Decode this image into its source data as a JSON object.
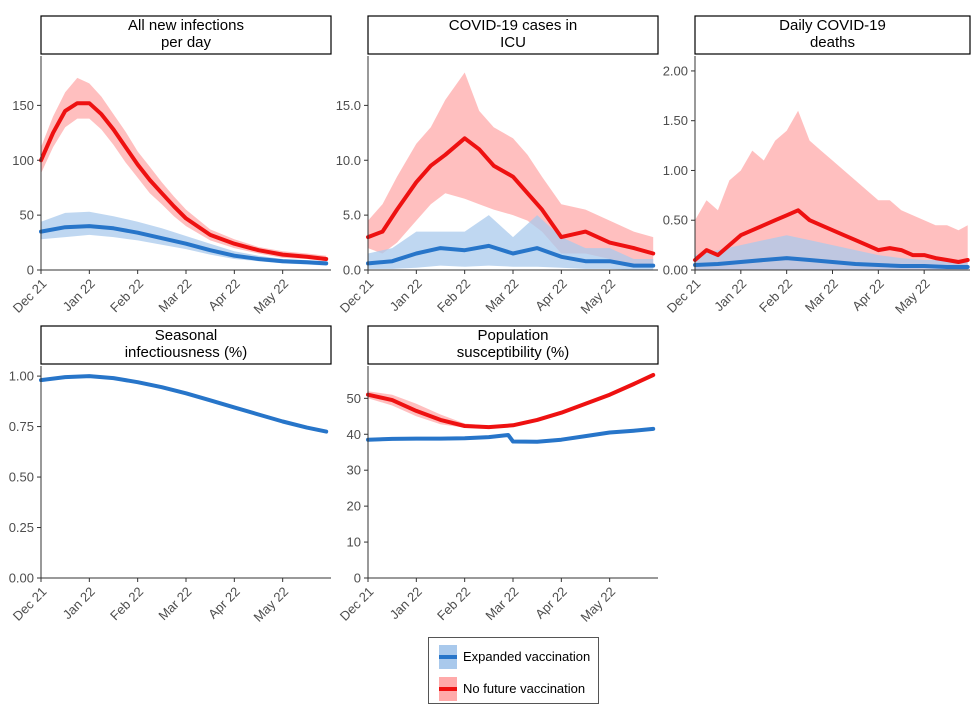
{
  "colors": {
    "expanded": "#2775c9",
    "expanded_band": "#a9c9ec",
    "no_future": "#ee1111",
    "no_future_band": "#ffaaaa",
    "strip_border": "#000000",
    "axis": "#333333"
  },
  "legend": {
    "items": [
      {
        "label": "Expanded vaccination",
        "series": "expanded"
      },
      {
        "label": "No future vaccination",
        "series": "no_future"
      }
    ]
  },
  "x_ticks": [
    "Dec 21",
    "Jan 22",
    "Feb 22",
    "Mar 22",
    "Apr 22",
    "May 22"
  ],
  "chart_data": [
    {
      "type": "area",
      "title_lines": [
        "All new infections",
        "per day"
      ],
      "x_ticks": [
        "Dec 21",
        "Jan 22",
        "Feb 22",
        "Mar 22",
        "Apr 22",
        "May 22"
      ],
      "x_range_months": [
        0,
        6
      ],
      "ylim": [
        0,
        195
      ],
      "y_ticks": [
        0,
        50,
        100,
        150
      ],
      "y_tick_labels": [
        "0",
        "50",
        "100",
        "150"
      ],
      "series": [
        {
          "name": "No future vaccination",
          "key": "no_future",
          "x_months": [
            0,
            0.25,
            0.5,
            0.75,
            1.0,
            1.25,
            1.5,
            1.75,
            2.0,
            2.25,
            2.5,
            2.75,
            3.0,
            3.5,
            4.0,
            4.5,
            5.0,
            5.5,
            5.9
          ],
          "values": [
            100,
            125,
            145,
            152,
            152,
            142,
            128,
            112,
            96,
            82,
            70,
            58,
            47,
            32,
            24,
            18,
            14,
            12,
            10
          ],
          "lower": [
            88,
            112,
            130,
            138,
            138,
            128,
            114,
            98,
            84,
            70,
            60,
            49,
            40,
            27,
            20,
            15,
            11,
            10,
            8
          ],
          "upper": [
            112,
            140,
            162,
            175,
            170,
            158,
            142,
            126,
            108,
            94,
            80,
            67,
            55,
            37,
            28,
            21,
            17,
            15,
            13
          ]
        },
        {
          "name": "Expanded vaccination",
          "key": "expanded",
          "x_months": [
            0,
            0.5,
            1.0,
            1.5,
            2.0,
            2.5,
            3.0,
            3.5,
            4.0,
            4.5,
            5.0,
            5.5,
            5.9
          ],
          "values": [
            35,
            39,
            40,
            38,
            34,
            29,
            24,
            18,
            13,
            10,
            8,
            7,
            6
          ],
          "lower": [
            28,
            30,
            32,
            30,
            27,
            23,
            19,
            14,
            10,
            8,
            6,
            5,
            4
          ],
          "upper": [
            44,
            52,
            53,
            49,
            44,
            38,
            31,
            24,
            17,
            13,
            10,
            9,
            8
          ]
        }
      ]
    },
    {
      "type": "area",
      "title_lines": [
        "COVID-19 cases in",
        "ICU"
      ],
      "x_ticks": [
        "Dec 21",
        "Jan 22",
        "Feb 22",
        "Mar 22",
        "Apr 22",
        "May 22"
      ],
      "x_range_months": [
        0,
        6
      ],
      "ylim": [
        0,
        19.5
      ],
      "y_ticks": [
        0,
        5,
        10,
        15
      ],
      "y_tick_labels": [
        "0.0",
        "5.0",
        "10.0",
        "15.0"
      ],
      "series": [
        {
          "name": "No future vaccination",
          "key": "no_future",
          "x_months": [
            0,
            0.3,
            0.6,
            1.0,
            1.3,
            1.6,
            2.0,
            2.3,
            2.6,
            3.0,
            3.3,
            3.6,
            4.0,
            4.5,
            5.0,
            5.5,
            5.9
          ],
          "values": [
            3.0,
            3.5,
            5.5,
            8.0,
            9.5,
            10.5,
            12.0,
            11.0,
            9.5,
            8.5,
            7.0,
            5.5,
            3.0,
            3.5,
            2.5,
            2.0,
            1.5
          ],
          "lower": [
            2.0,
            1.5,
            2.5,
            4.5,
            6.0,
            7.0,
            6.5,
            6.0,
            5.5,
            5.0,
            4.5,
            3.5,
            1.5,
            1.5,
            1.0,
            0.5,
            0.5
          ],
          "upper": [
            4.5,
            6.0,
            8.5,
            11.5,
            13.0,
            15.5,
            18.0,
            14.5,
            13.0,
            12.0,
            10.5,
            8.5,
            6.0,
            5.5,
            4.5,
            3.5,
            3.0
          ]
        },
        {
          "name": "Expanded vaccination",
          "key": "expanded",
          "x_months": [
            0,
            0.5,
            1.0,
            1.5,
            2.0,
            2.5,
            3.0,
            3.5,
            4.0,
            4.5,
            5.0,
            5.5,
            5.9
          ],
          "values": [
            0.6,
            0.8,
            1.5,
            2.0,
            1.8,
            2.2,
            1.5,
            2.0,
            1.2,
            0.8,
            0.8,
            0.4,
            0.4
          ],
          "lower": [
            0.1,
            0.1,
            0.2,
            0.4,
            0.3,
            0.4,
            0.3,
            0.3,
            0.2,
            0.1,
            0.1,
            0.0,
            0.0
          ],
          "upper": [
            1.5,
            2.0,
            3.5,
            3.5,
            3.5,
            5.0,
            3.0,
            5.0,
            3.0,
            2.0,
            2.0,
            1.0,
            1.0
          ]
        }
      ]
    },
    {
      "type": "area",
      "title_lines": [
        "Daily COVID-19",
        "deaths"
      ],
      "x_ticks": [
        "Dec 21",
        "Jan 22",
        "Feb 22",
        "Mar 22",
        "Apr 22",
        "May 22"
      ],
      "x_range_months": [
        0,
        6
      ],
      "ylim": [
        0,
        2.15
      ],
      "y_ticks": [
        0,
        0.5,
        1.0,
        1.5,
        2.0
      ],
      "y_tick_labels": [
        "0.00",
        "0.50",
        "1.00",
        "1.50",
        "2.00"
      ],
      "series": [
        {
          "name": "No future vaccination",
          "key": "no_future",
          "x_months": [
            0,
            0.25,
            0.5,
            0.75,
            1.0,
            1.25,
            1.5,
            1.75,
            2.0,
            2.25,
            2.5,
            2.75,
            3.0,
            3.25,
            3.5,
            3.75,
            4.0,
            4.25,
            4.5,
            4.75,
            5.0,
            5.25,
            5.5,
            5.75,
            5.95
          ],
          "values": [
            0.1,
            0.2,
            0.15,
            0.25,
            0.35,
            0.4,
            0.45,
            0.5,
            0.55,
            0.6,
            0.5,
            0.45,
            0.4,
            0.35,
            0.3,
            0.25,
            0.2,
            0.22,
            0.2,
            0.15,
            0.15,
            0.12,
            0.1,
            0.08,
            0.1
          ],
          "lower": [
            0,
            0,
            0,
            0,
            0,
            0,
            0,
            0,
            0,
            0,
            0,
            0,
            0,
            0,
            0,
            0,
            0,
            0,
            0,
            0,
            0,
            0,
            0,
            0,
            0
          ],
          "upper": [
            0.5,
            0.7,
            0.6,
            0.9,
            1.0,
            1.2,
            1.1,
            1.3,
            1.4,
            1.6,
            1.3,
            1.2,
            1.1,
            1.0,
            0.9,
            0.8,
            0.7,
            0.7,
            0.6,
            0.55,
            0.5,
            0.45,
            0.45,
            0.4,
            0.45
          ]
        },
        {
          "name": "Expanded vaccination",
          "key": "expanded",
          "x_months": [
            0,
            0.5,
            1.0,
            1.5,
            2.0,
            2.5,
            3.0,
            3.5,
            4.0,
            4.5,
            5.0,
            5.5,
            5.95
          ],
          "values": [
            0.05,
            0.06,
            0.08,
            0.1,
            0.12,
            0.1,
            0.08,
            0.06,
            0.05,
            0.04,
            0.04,
            0.03,
            0.03
          ],
          "lower": [
            0,
            0,
            0,
            0,
            0,
            0,
            0,
            0,
            0,
            0,
            0,
            0,
            0
          ],
          "upper": [
            0.15,
            0.2,
            0.25,
            0.3,
            0.35,
            0.3,
            0.25,
            0.2,
            0.15,
            0.12,
            0.1,
            0.1,
            0.1
          ]
        }
      ]
    },
    {
      "type": "line",
      "title_lines": [
        "Seasonal",
        "infectiousness (%)"
      ],
      "x_ticks": [
        "Dec 21",
        "Jan 22",
        "Feb 22",
        "Mar 22",
        "Apr 22",
        "May 22"
      ],
      "x_range_months": [
        0,
        6
      ],
      "ylim": [
        0,
        1.05
      ],
      "y_ticks": [
        0,
        0.25,
        0.5,
        0.75,
        1.0
      ],
      "y_tick_labels": [
        "0.00",
        "0.25",
        "0.50",
        "0.75",
        "1.00"
      ],
      "series": [
        {
          "name": "Expanded vaccination",
          "key": "expanded",
          "x_months": [
            0,
            0.5,
            1.0,
            1.5,
            2.0,
            2.5,
            3.0,
            3.5,
            4.0,
            4.5,
            5.0,
            5.5,
            5.9
          ],
          "values": [
            0.98,
            0.995,
            1.0,
            0.99,
            0.97,
            0.945,
            0.915,
            0.88,
            0.845,
            0.81,
            0.775,
            0.745,
            0.725
          ]
        }
      ]
    },
    {
      "type": "area",
      "title_lines": [
        "Population",
        "susceptibility (%)"
      ],
      "x_ticks": [
        "Dec 21",
        "Jan 22",
        "Feb 22",
        "Mar 22",
        "Apr 22",
        "May 22"
      ],
      "x_range_months": [
        0,
        6
      ],
      "ylim": [
        0,
        59
      ],
      "y_ticks": [
        0,
        10,
        20,
        30,
        40,
        50
      ],
      "y_tick_labels": [
        "0",
        "10",
        "20",
        "30",
        "40",
        "50"
      ],
      "series": [
        {
          "name": "No future vaccination",
          "key": "no_future",
          "x_months": [
            0,
            0.5,
            1.0,
            1.5,
            2.0,
            2.5,
            3.0,
            3.5,
            4.0,
            4.5,
            5.0,
            5.5,
            5.9
          ],
          "values": [
            51,
            49.5,
            46.5,
            44,
            42.3,
            42,
            42.5,
            44,
            46,
            48.5,
            51,
            54,
            56.5
          ],
          "lower": [
            50,
            48,
            45,
            42.8,
            41.8,
            41.7,
            42.3,
            43.8,
            45.8,
            48.3,
            50.8,
            53.8,
            56.3
          ],
          "upper": [
            52,
            51,
            48.5,
            45.5,
            43,
            42.4,
            42.8,
            44.2,
            46.2,
            48.7,
            51.2,
            54.2,
            56.7
          ]
        },
        {
          "name": "Expanded vaccination",
          "key": "expanded",
          "x_months": [
            0,
            0.5,
            1.0,
            1.5,
            2.0,
            2.5,
            2.9,
            3.0,
            3.5,
            4.0,
            4.5,
            5.0,
            5.5,
            5.9
          ],
          "values": [
            38.5,
            38.7,
            38.8,
            38.8,
            38.9,
            39.2,
            39.8,
            38.0,
            37.9,
            38.5,
            39.5,
            40.5,
            41.0,
            41.5
          ]
        }
      ]
    }
  ]
}
